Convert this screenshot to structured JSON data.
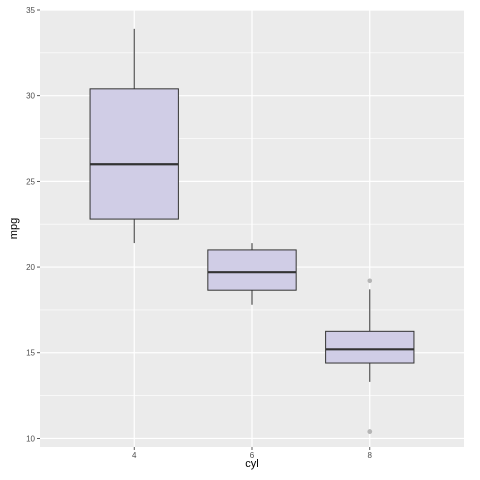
{
  "chart_data": {
    "type": "boxplot",
    "title": "",
    "xlabel": "cyl",
    "ylabel": "mpg",
    "categories": [
      "4",
      "6",
      "8"
    ],
    "ylim": [
      9.5,
      35
    ],
    "y_ticks": [
      10,
      15,
      20,
      25,
      30,
      35
    ],
    "grid": true,
    "legend": "none",
    "boxes": [
      {
        "category": "4",
        "whisker_low": 21.4,
        "q1": 22.8,
        "median": 26.0,
        "q3": 30.4,
        "whisker_high": 33.9,
        "outliers": []
      },
      {
        "category": "6",
        "whisker_low": 17.8,
        "q1": 18.65,
        "median": 19.7,
        "q3": 21.0,
        "whisker_high": 21.4,
        "outliers": []
      },
      {
        "category": "8",
        "whisker_low": 13.3,
        "q1": 14.4,
        "median": 15.2,
        "q3": 16.25,
        "whisker_high": 18.7,
        "outliers": [
          10.4,
          10.4,
          19.2
        ]
      }
    ],
    "colors": {
      "panel_background": "#ebebeb",
      "grid_major": "#ffffff",
      "box_fill": "#d0cde6",
      "box_outline": "#333333",
      "outlier": "#b5b5b5"
    }
  }
}
